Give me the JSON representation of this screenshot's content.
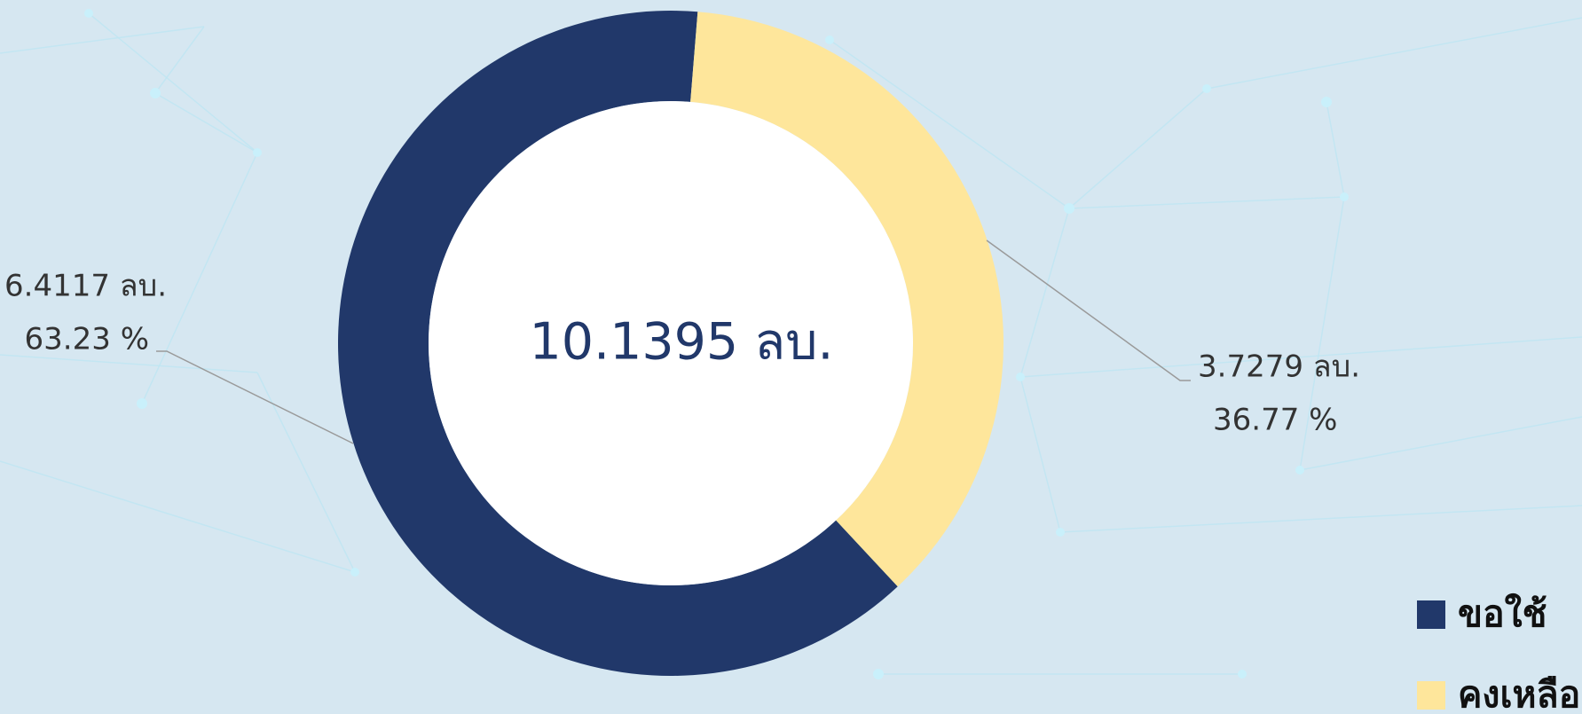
{
  "chart_data": {
    "type": "donut",
    "center_text": "10.1395 ลบ.",
    "categories": [
      "ขอใช้",
      "คงเหลือ"
    ],
    "values": [
      6.4117,
      3.7279
    ],
    "value_labels": [
      "6.4117 ลบ.",
      "3.7279 ลบ."
    ],
    "percent_labels": [
      "63.23 %",
      "36.77 %"
    ],
    "colors": [
      "#21386a",
      "#fee69b"
    ],
    "legend": "bottom-right"
  }
}
